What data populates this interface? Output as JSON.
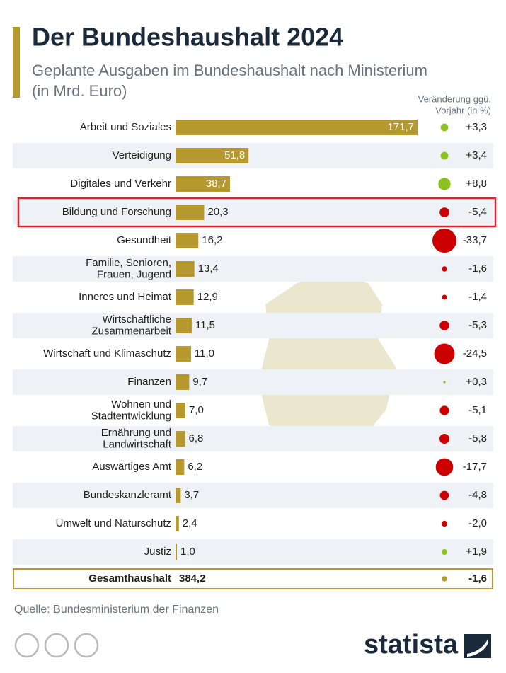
{
  "chart_data": {
    "type": "bar",
    "orientation": "horizontal",
    "title": "Der Bundeshaushalt 2024",
    "subtitle": [
      "Geplante Ausgaben im Bundeshaushalt nach Ministerium",
      "(in Mrd. Euro)"
    ],
    "change_header": [
      "Veränderung ggü.",
      "Vorjahr (in %)"
    ],
    "color": "#b5982e",
    "positive_color": "#8cc21f",
    "negative_color": "#cc0000",
    "highlight_index": 3,
    "highlight_color": "#e0202a",
    "categories": [
      "Arbeit und Soziales",
      "Verteidigung",
      "Digitales und Verkehr",
      "Bildung und Forschung",
      "Gesundheit",
      "Familie, Senioren,\nFrauen, Jugend",
      "Inneres und Heimat",
      "Wirtschaftliche\nZusammenarbeit",
      "Wirtschaft und Klimaschutz",
      "Finanzen",
      "Wohnen und\nStadtentwicklung",
      "Ernährung und\nLandwirtschaft",
      "Auswärtiges Amt",
      "Bundeskanzleramt",
      "Umwelt und Naturschutz",
      "Justiz"
    ],
    "values": [
      171.7,
      51.8,
      38.7,
      20.3,
      16.2,
      13.4,
      12.9,
      11.5,
      11.0,
      9.7,
      7.0,
      6.8,
      6.2,
      3.7,
      2.4,
      1.0
    ],
    "value_labels": [
      "171,7",
      "51,8",
      "38,7",
      "20,3",
      "16,2",
      "13,4",
      "12,9",
      "11,5",
      "11,0",
      "9,7",
      "7,0",
      "6,8",
      "6,2",
      "3,7",
      "2,4",
      "1,0"
    ],
    "changes": [
      3.3,
      3.4,
      8.8,
      -5.4,
      -33.7,
      -1.6,
      -1.4,
      -5.3,
      -24.5,
      0.3,
      -5.1,
      -5.8,
      -17.7,
      -4.8,
      -2.0,
      1.9
    ],
    "change_labels": [
      "+3,3",
      "+3,4",
      "+8,8",
      "-5,4",
      "-33,7",
      "-1,6",
      "-1,4",
      "-5,3",
      "-24,5",
      "+0,3",
      "-5,1",
      "-5,8",
      "-17,7",
      "-4,8",
      "-2,0",
      "+1,9"
    ],
    "total": {
      "label": "Gesamthaushalt",
      "value": 384.2,
      "value_label": "384,2",
      "change": -1.6,
      "change_label": "-1,6"
    },
    "source": "Quelle: Bundesministerium der Finanzen",
    "brand": "statista"
  }
}
